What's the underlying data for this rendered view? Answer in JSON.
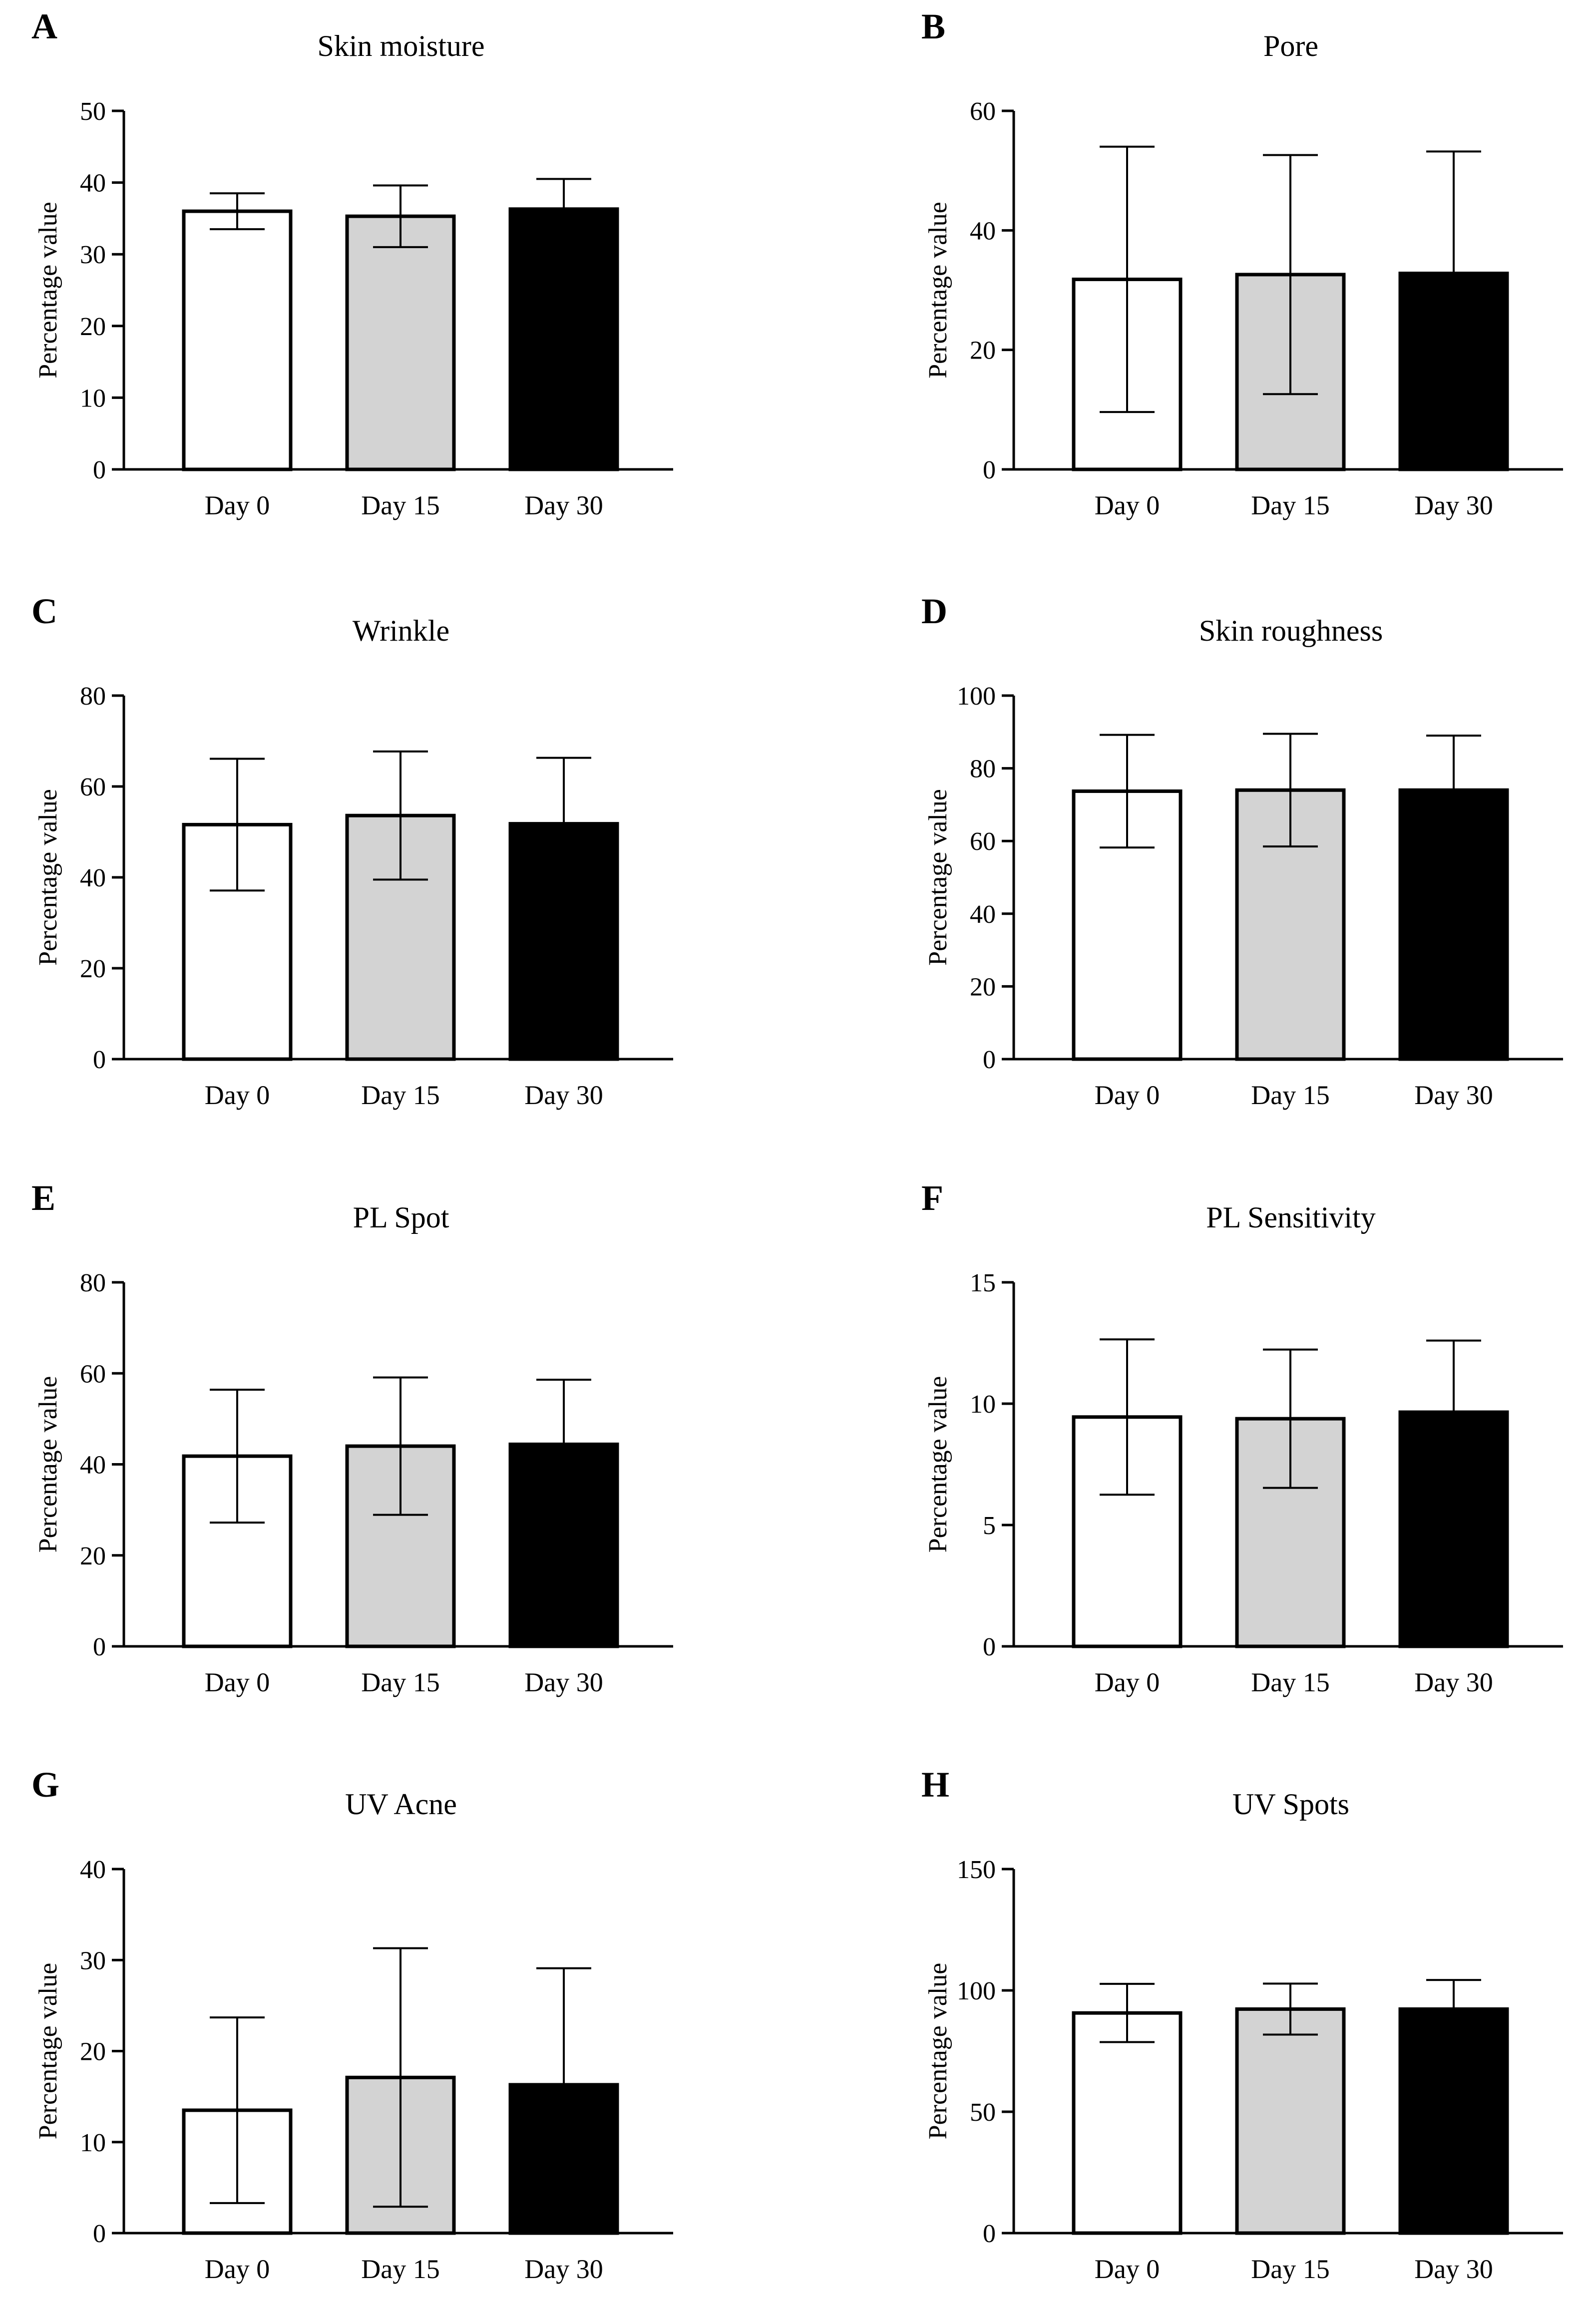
{
  "figure": {
    "bar_fills": [
      "#ffffff",
      "#d3d3d3",
      "#000000"
    ]
  },
  "chart_data": [
    {
      "letter": "A",
      "type": "bar",
      "title": "Skin moisture",
      "ylabel": "Percentage value",
      "categories": [
        "Day 0",
        "Day 15",
        "Day 30"
      ],
      "values": [
        36,
        35.3,
        36.3
      ],
      "error": [
        2.5,
        4.3,
        4.2
      ],
      "ylim": [
        0,
        50
      ],
      "yticks": [
        0,
        10,
        20,
        30,
        40,
        50
      ]
    },
    {
      "letter": "B",
      "type": "bar",
      "title": "Pore",
      "ylabel": "Percentage value",
      "categories": [
        "Day 0",
        "Day 15",
        "Day 30"
      ],
      "values": [
        31.8,
        32.6,
        32.8
      ],
      "error": [
        22.2,
        20,
        20.4
      ],
      "ylim": [
        0,
        60
      ],
      "yticks": [
        0,
        20,
        40,
        60
      ]
    },
    {
      "letter": "C",
      "type": "bar",
      "title": "Wrinkle",
      "ylabel": "Percentage value",
      "categories": [
        "Day 0",
        "Day 15",
        "Day 30"
      ],
      "values": [
        51.6,
        53.6,
        51.8
      ],
      "error": [
        14.5,
        14.1,
        14.5
      ],
      "ylim": [
        0,
        80
      ],
      "yticks": [
        0,
        20,
        40,
        60,
        80
      ]
    },
    {
      "letter": "D",
      "type": "bar",
      "title": "Skin roughness",
      "ylabel": "Percentage value",
      "categories": [
        "Day 0",
        "Day 15",
        "Day 30"
      ],
      "values": [
        73.7,
        74,
        74
      ],
      "error": [
        15.5,
        15.5,
        15
      ],
      "ylim": [
        0,
        100
      ],
      "yticks": [
        0,
        20,
        40,
        60,
        80,
        100
      ]
    },
    {
      "letter": "E",
      "type": "bar",
      "title": "PL Spot",
      "ylabel": "Percentage value",
      "categories": [
        "Day 0",
        "Day 15",
        "Day 30"
      ],
      "values": [
        41.8,
        44,
        44.4
      ],
      "error": [
        14.6,
        15.1,
        14.2
      ],
      "ylim": [
        0,
        80
      ],
      "yticks": [
        0,
        20,
        40,
        60,
        80
      ]
    },
    {
      "letter": "F",
      "type": "bar",
      "title": "PL Sensitivity",
      "ylabel": "Percentage value",
      "categories": [
        "Day 0",
        "Day 15",
        "Day 30"
      ],
      "values": [
        9.45,
        9.38,
        9.65
      ],
      "error": [
        3.2,
        2.85,
        2.95
      ],
      "ylim": [
        0,
        15
      ],
      "yticks": [
        0,
        5,
        10,
        15
      ]
    },
    {
      "letter": "G",
      "type": "bar",
      "title": "UV Acne",
      "ylabel": "Percentage value",
      "categories": [
        "Day 0",
        "Day 15",
        "Day 30"
      ],
      "values": [
        13.5,
        17.1,
        16.3
      ],
      "error": [
        10.2,
        14.2,
        12.8
      ],
      "ylim": [
        0,
        40
      ],
      "yticks": [
        0,
        10,
        20,
        30,
        40
      ]
    },
    {
      "letter": "H",
      "type": "bar",
      "title": "UV Spots",
      "ylabel": "Percentage value",
      "categories": [
        "Day 0",
        "Day 15",
        "Day 30"
      ],
      "values": [
        90.7,
        92.3,
        92.3
      ],
      "error": [
        12,
        10.5,
        12
      ],
      "ylim": [
        0,
        150
      ],
      "yticks": [
        0,
        50,
        100,
        150
      ]
    }
  ]
}
